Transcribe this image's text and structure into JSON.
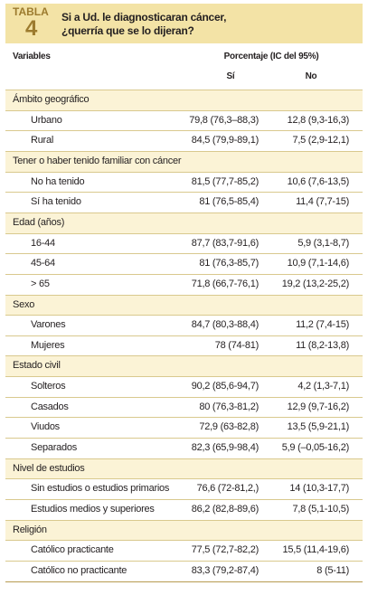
{
  "header": {
    "label": "TABLA",
    "number": "4",
    "title": [
      "Si a Ud. le diagnosticaran cáncer,",
      "¿querría que se lo dijeran?"
    ]
  },
  "table": {
    "columns": {
      "variables": "Variables",
      "percent": "Porcentaje (IC del 95%)",
      "si": "Sí",
      "no": "No"
    },
    "groups": [
      {
        "name": "Ámbito geográfico",
        "rows": [
          [
            "Urbano",
            "79,8 (76,3–88,3)",
            "12,8 (9,3-16,3)"
          ],
          [
            "Rural",
            "84,5 (79,9-89,1)",
            "7,5 (2,9-12,1)"
          ]
        ]
      },
      {
        "name": "Tener o haber tenido familiar con cáncer",
        "rows": [
          [
            "No ha tenido",
            "81,5 (77,7-85,2)",
            "10,6 (7,6-13,5)"
          ],
          [
            "Sí ha tenido",
            "81 (76,5-85,4)",
            "11,4 (7,7-15)"
          ]
        ]
      },
      {
        "name": "Edad (años)",
        "rows": [
          [
            "16-44",
            "87,7 (83,7-91,6)",
            "5,9 (3,1-8,7)"
          ],
          [
            "45-64",
            "81 (76,3-85,7)",
            "10,9 (7,1-14,6)"
          ],
          [
            "> 65",
            "71,8 (66,7-76,1)",
            "19,2 (13,2-25,2)"
          ]
        ]
      },
      {
        "name": "Sexo",
        "rows": [
          [
            "Varones",
            "84,7 (80,3-88,4)",
            "11,2 (7,4-15)"
          ],
          [
            "Mujeres",
            "78 (74-81)",
            "11 (8,2-13,8)"
          ]
        ]
      },
      {
        "name": "Estado civil",
        "rows": [
          [
            "Solteros",
            "90,2 (85,6-94,7)",
            "4,2 (1,3-7,1)"
          ],
          [
            "Casados",
            "80 (76,3-81,2)",
            "12,9 (9,7-16,2)"
          ],
          [
            "Viudos",
            "72,9 (63-82,8)",
            "13,5 (5,9-21,1)"
          ],
          [
            "Separados",
            "82,3 (65,9-98,4)",
            "5,9 (–0,05-16,2)"
          ]
        ]
      },
      {
        "name": "Nivel de estudios",
        "rows": [
          [
            "Sin estudios o estudios primarios",
            "76,6 (72-81,2,)",
            "14 (10,3-17,7)"
          ],
          [
            "Estudios medios y superiores",
            "86,2 (82,8-89,6)",
            "7,8 (5,1-10,5)"
          ]
        ]
      },
      {
        "name": "Religión",
        "rows": [
          [
            "Católico practicante",
            "77,5 (72,7-82,2)",
            "15,5 (11,4-19,6)"
          ],
          [
            "Católico no practicante",
            "83,3 (79,2-87,4)",
            "8 (5-11)"
          ]
        ]
      }
    ]
  }
}
